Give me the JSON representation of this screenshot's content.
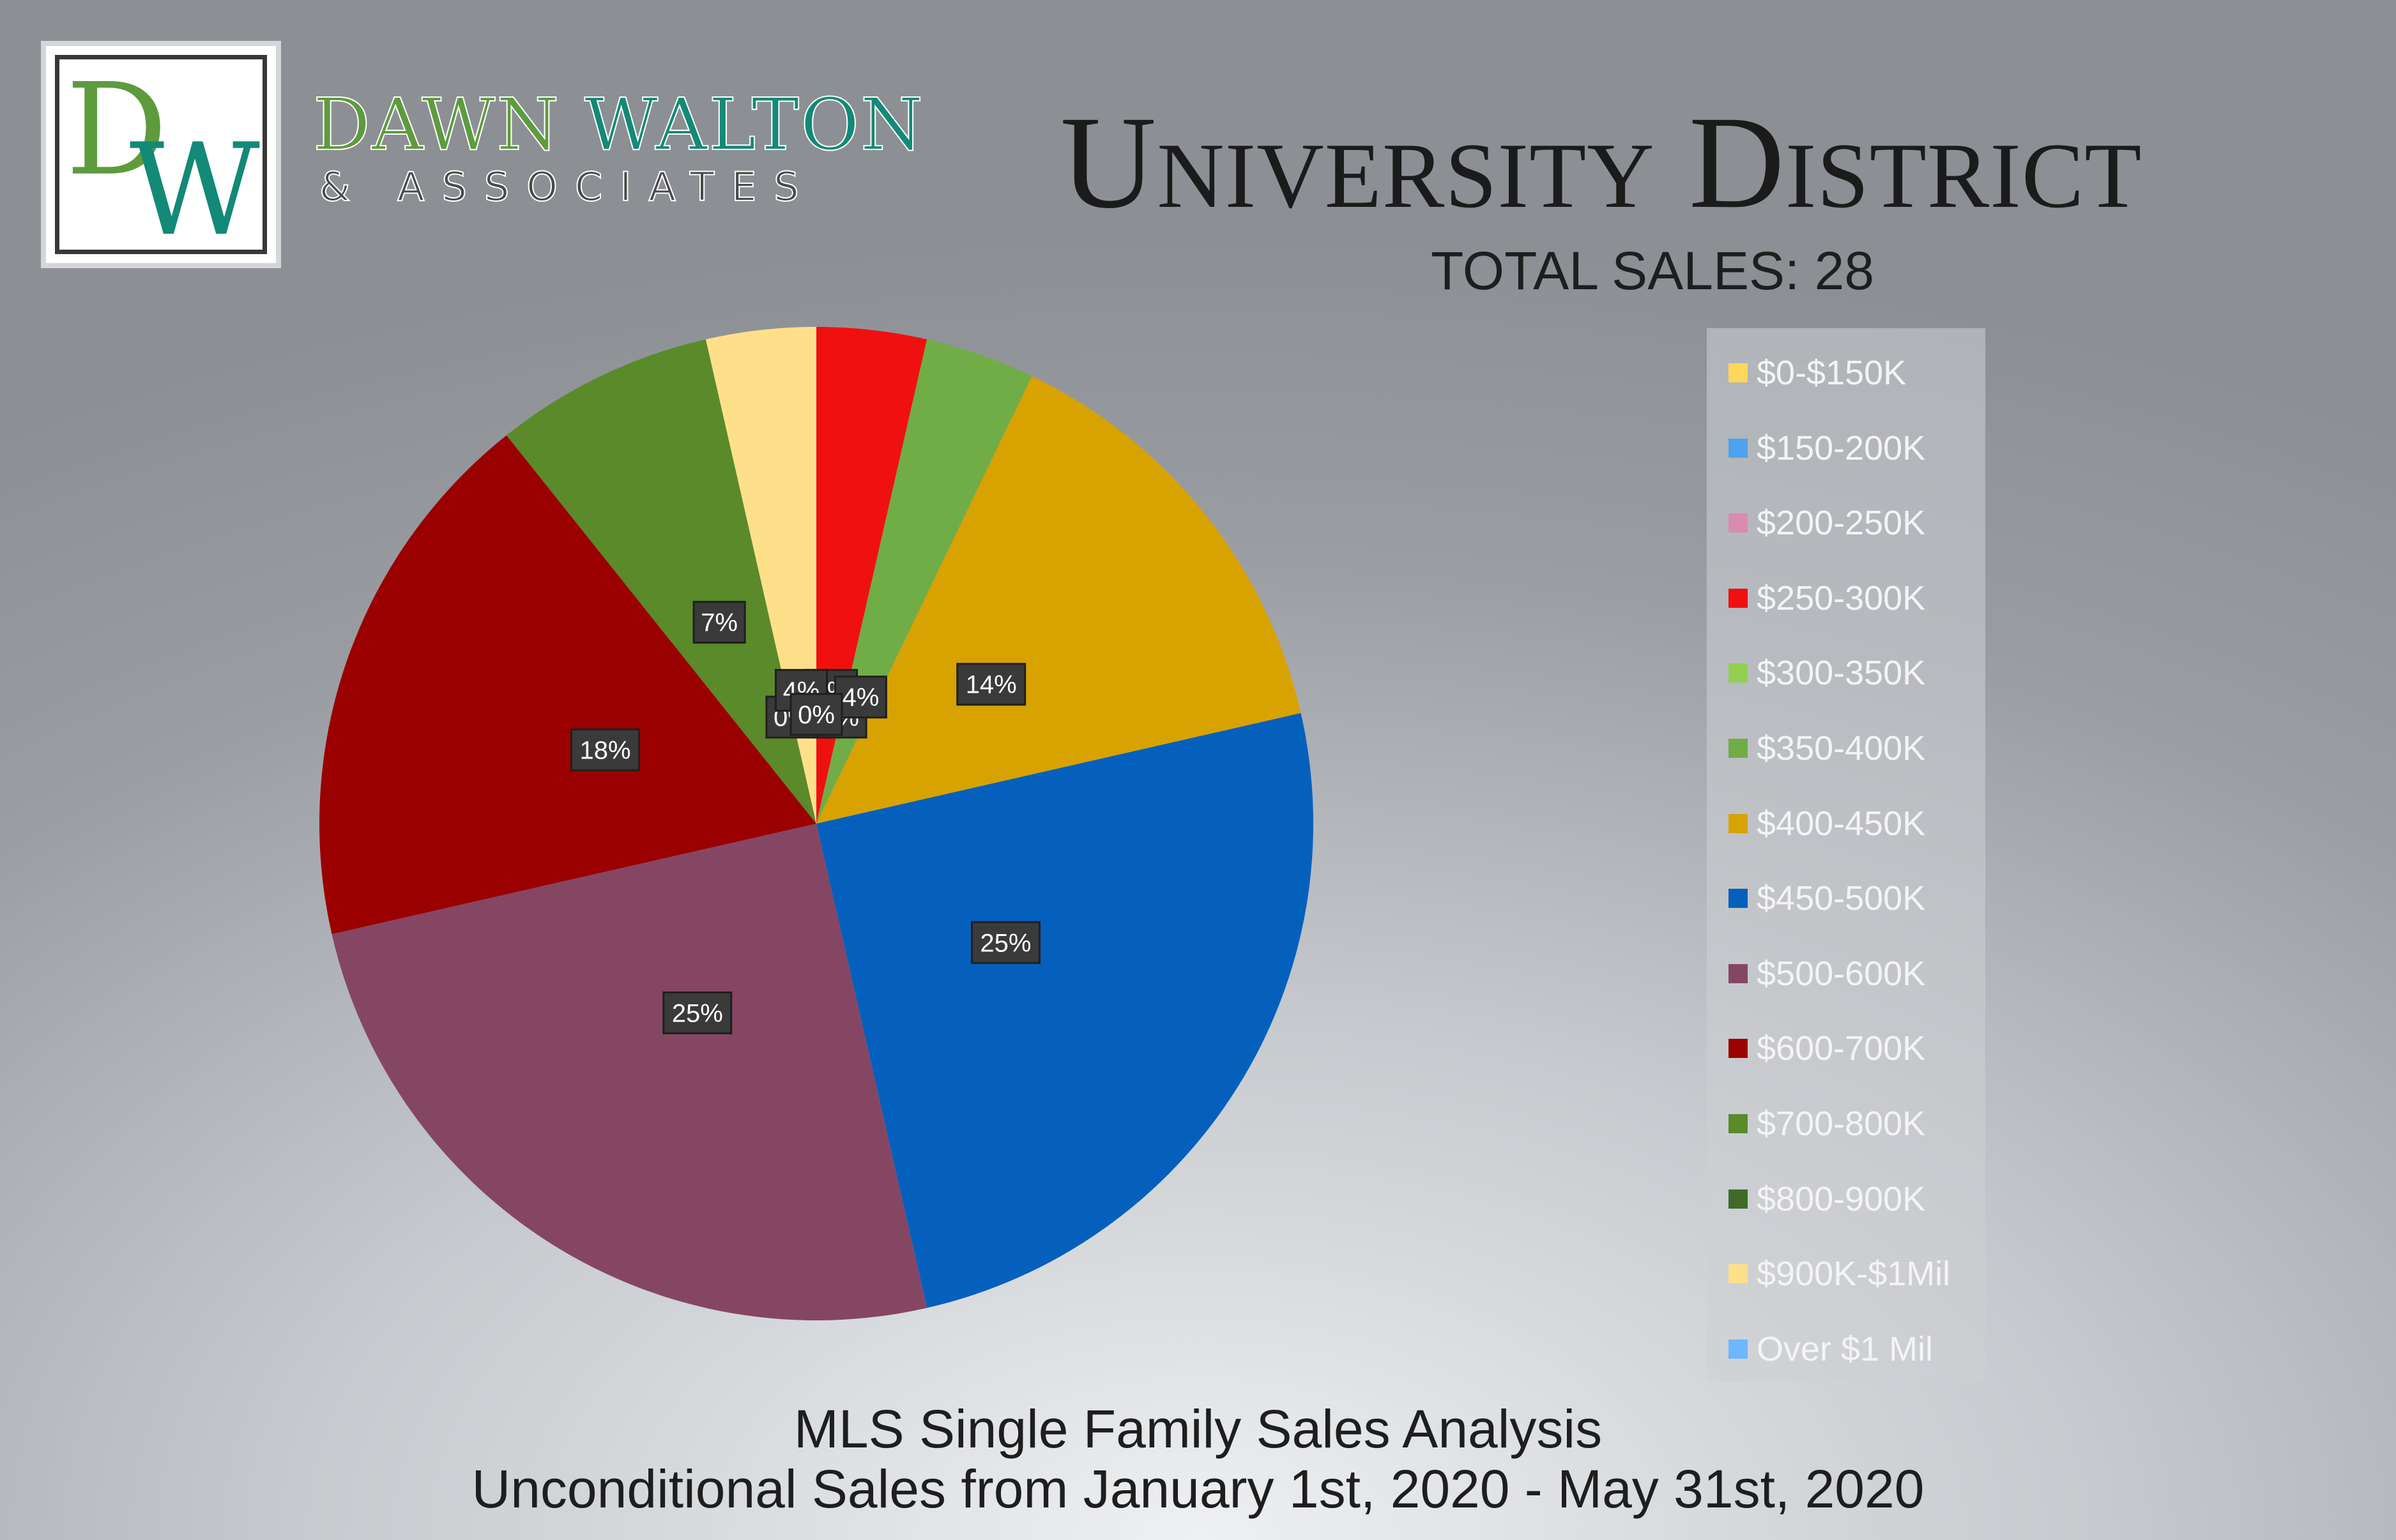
{
  "brand": {
    "logo_text": "DW",
    "name_part1": "DAWN ",
    "name_part2": "WALTON",
    "subtitle": "& ASSOCIATES"
  },
  "header": {
    "title": "University District",
    "total_sales": "TOTAL SALES: 28"
  },
  "footer": {
    "line1": "MLS Single Family Sales Analysis",
    "line2": "Unconditional Sales from January 1st, 2020 - May 31st, 2020"
  },
  "colors": {
    "brand_green": "#5e9b3d",
    "brand_teal": "#138977",
    "label_box": "#3a3a3a"
  },
  "chart_data": {
    "type": "pie",
    "title": "",
    "legend_position": "right",
    "categories": [
      "$0-$150K",
      "$150-200K",
      "$200-250K",
      "$250-300K",
      "$300-350K",
      "$350-400K",
      "$400-450K",
      "$450-500K",
      "$500-600K",
      "$600-700K",
      "$700-800K",
      "$800-900K",
      "$900K-$1Mil",
      "Over $1 Mil"
    ],
    "values": [
      0,
      0,
      0,
      1,
      0,
      1,
      4,
      7,
      7,
      5,
      2,
      0,
      1,
      0
    ],
    "labels": [
      "0%",
      "0%",
      "0%",
      "4%",
      "0%",
      "4%",
      "14%",
      "25%",
      "25%",
      "18%",
      "7%",
      "0%",
      "4%",
      "0%"
    ],
    "colors": [
      "#fcd75a",
      "#4da3f0",
      "#d98bb0",
      "#f01010",
      "#92d050",
      "#70ad47",
      "#d8a200",
      "#0560bd",
      "#854663",
      "#9b0000",
      "#5a8a2a",
      "#3f6a28",
      "#ffe08a",
      "#6eb6ff"
    ]
  }
}
